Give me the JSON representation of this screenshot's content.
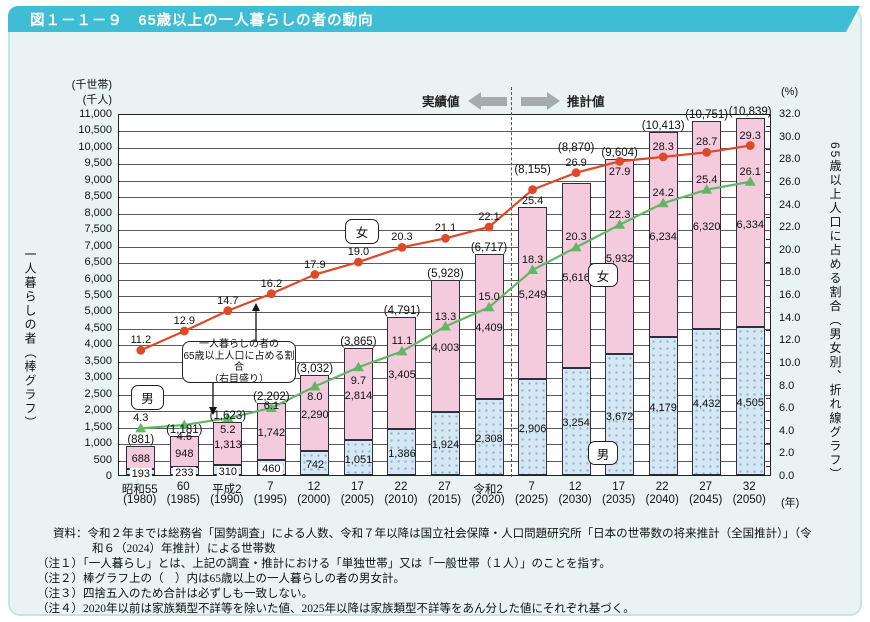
{
  "title": "図１－１－９　65歳以上の一人暮らしの者の動向",
  "colors": {
    "banner": "#3fbdd4",
    "panel_bg": "#e9f4f2",
    "bar_female": "#f4cbdd",
    "bar_male": "#d6e7f4",
    "bar_male_dot": "#8fb4d4",
    "line_female": "#dd4a2b",
    "line_male": "#63b668",
    "arrow_gray": "#a6abae"
  },
  "chart_data": {
    "type": "bar",
    "subtype": "stacked male/female bars with two percentage lines (dual axis)",
    "title": "図１－１－９　65歳以上の一人暮らしの者の動向",
    "grid": true,
    "categories_era": [
      "昭和55",
      "60",
      "平成2",
      "7",
      "12",
      "17",
      "22",
      "27",
      "令和2",
      "7",
      "12",
      "17",
      "22",
      "27",
      "32"
    ],
    "categories_year": [
      "(1980)",
      "(1985)",
      "(1990)",
      "(1995)",
      "(2000)",
      "(2005)",
      "(2010)",
      "(2015)",
      "(2020)",
      "(2025)",
      "(2030)",
      "(2035)",
      "(2040)",
      "(2045)",
      "(2050)"
    ],
    "year_axis_unit": "(年)",
    "bar_series": [
      {
        "name": "女",
        "values": [
          688,
          948,
          1313,
          1742,
          2290,
          2814,
          3405,
          4003,
          4409,
          5249,
          5616,
          5932,
          6234,
          6320,
          6334
        ]
      },
      {
        "name": "男",
        "values": [
          193,
          233,
          310,
          460,
          742,
          1051,
          1386,
          1924,
          2308,
          2906,
          3254,
          3672,
          4179,
          4432,
          4505
        ]
      }
    ],
    "bar_totals": [
      881,
      1181,
      1623,
      2202,
      3032,
      3865,
      4791,
      5928,
      6717,
      8155,
      8870,
      9604,
      10413,
      10751,
      10839
    ],
    "line_series": [
      {
        "name": "女",
        "values": [
          11.2,
          12.9,
          14.7,
          16.2,
          17.9,
          19.0,
          20.3,
          21.1,
          22.1,
          25.4,
          26.9,
          27.9,
          28.3,
          28.7,
          29.3
        ]
      },
      {
        "name": "男",
        "values": [
          4.3,
          4.6,
          5.2,
          6.1,
          8.0,
          9.7,
          11.1,
          13.3,
          15.0,
          18.3,
          20.3,
          22.3,
          24.2,
          25.4,
          26.1
        ]
      }
    ],
    "left_axis": {
      "units": [
        "(千世帯)",
        "(千人)"
      ],
      "min": 0,
      "max": 11000,
      "step": 500,
      "title": "一人暮らしの者（棒グラフ）"
    },
    "right_axis": {
      "unit": "(%)",
      "min": 0,
      "max": 32,
      "step": 2,
      "title": "65歳以上人口に占める割合（男女別、折れ線グラフ）"
    },
    "divider": {
      "actual_label": "実績値",
      "forecast_label": "推計値",
      "between_categories": [
        "令和2",
        "7"
      ]
    },
    "annotation": [
      "一人暮らしの者の",
      "65歳以上人口に占める割合",
      "（右目盛り）"
    ],
    "inline_tags": {
      "line_female": "女",
      "line_male": "男",
      "bar_female": "女",
      "bar_male": "男"
    }
  },
  "footer": {
    "lines": [
      {
        "indent": 1,
        "text": "資料：令和２年までは総務省「国勢調査」による人数、令和７年以降は国立社会保障・人口問題研究所「日本の世帯数の将来推計（全国推計）」（令"
      },
      {
        "indent": 2,
        "text": "和６（2024）年推計）による世帯数"
      },
      {
        "indent": 0,
        "text": "（注１）「一人暮らし」とは、上記の調査・推計における「単独世帯」又は「一般世帯（１人）」のことを指す。"
      },
      {
        "indent": 0,
        "text": "（注２）棒グラフ上の（　）内は65歳以上の一人暮らしの者の男女計。"
      },
      {
        "indent": 0,
        "text": "（注３）四捨五入のため合計は必ずしも一致しない。"
      },
      {
        "indent": 0,
        "text": "（注４）2020年以前は家族類型不詳等を除いた値、2025年以降は家族類型不詳等をあん分した値にそれぞれ基づく。"
      }
    ]
  }
}
